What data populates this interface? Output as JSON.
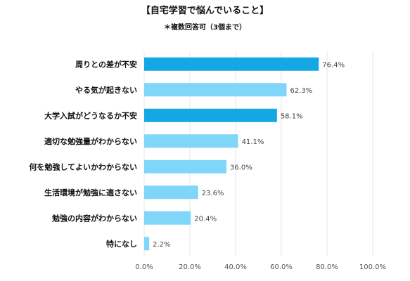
{
  "chart_data": {
    "type": "bar",
    "orientation": "horizontal",
    "title": "【自宅学習で悩んでいること】",
    "subtitle": "＊複数回答可（3個まで）",
    "categories": [
      "周りとの差が不安",
      "やる気が起きない",
      "大学入試がどうなるか不安",
      "適切な勉強量がわからない",
      "何を勉強してよいかわからない",
      "生活環境が勉強に適さない",
      "勉強の内容がわからない",
      "特になし"
    ],
    "values": [
      76.4,
      62.3,
      58.1,
      41.1,
      36.0,
      23.6,
      20.4,
      2.2
    ],
    "value_labels": [
      "76.4%",
      "62.3%",
      "58.1%",
      "41.1%",
      "36.0%",
      "23.6%",
      "20.4%",
      "2.2%"
    ],
    "highlighted": [
      true,
      false,
      true,
      false,
      false,
      false,
      false,
      false
    ],
    "xlim": [
      0,
      100
    ],
    "ticks": [
      0,
      20,
      40,
      60,
      80,
      100
    ],
    "tick_labels": [
      "0.0%",
      "20.0%",
      "40.0%",
      "60.0%",
      "80.0%",
      "100.0%"
    ],
    "grid": true,
    "colors": {
      "highlight": "#13a8e3",
      "normal": "#7fd6f8",
      "grid": "#e6e6e6"
    }
  }
}
